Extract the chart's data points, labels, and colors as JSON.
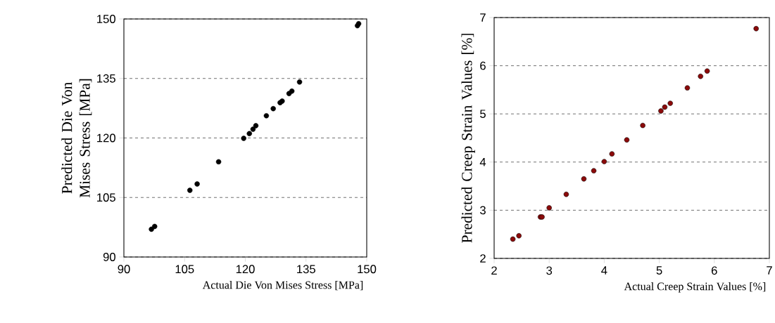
{
  "chart_data": [
    {
      "type": "scatter",
      "xlabel": "Actual Die Von Mises Stress [MPa]",
      "ylabel": "Predicted Die Von Mises Stress [MPa]",
      "xlim": [
        90,
        150
      ],
      "ylim": [
        90,
        150
      ],
      "xticks": [
        90,
        105,
        120,
        135,
        150
      ],
      "yticks": [
        90,
        105,
        120,
        135,
        150
      ],
      "grid": "y",
      "marker": "circle",
      "color": "#000000",
      "x": [
        96.8,
        97.6,
        106.3,
        108.1,
        113.4,
        119.6,
        121.0,
        121.9,
        122.6,
        125.2,
        126.9,
        128.6,
        129.1,
        130.8,
        131.5,
        133.4,
        147.7,
        148.0
      ],
      "values": [
        97.0,
        97.7,
        106.8,
        108.4,
        114.0,
        119.9,
        121.1,
        122.2,
        123.1,
        125.6,
        127.4,
        128.9,
        129.3,
        131.2,
        131.8,
        134.1,
        148.3,
        148.8
      ]
    },
    {
      "type": "scatter",
      "xlabel": "Actual Creep Strain Values [%]",
      "ylabel": "Predicted Creep Strain Values [%]",
      "xlim": [
        2,
        7
      ],
      "ylim": [
        2,
        7
      ],
      "xticks": [
        2,
        3,
        4,
        5,
        6,
        7
      ],
      "yticks": [
        2,
        3,
        4,
        5,
        6,
        7
      ],
      "grid": "y",
      "marker": "circle",
      "color": "#8b0a0a",
      "x": [
        2.34,
        2.45,
        2.84,
        2.87,
        3.0,
        3.31,
        3.63,
        3.81,
        4.0,
        4.14,
        4.41,
        4.7,
        5.03,
        5.1,
        5.2,
        5.51,
        5.75,
        5.87,
        6.76
      ],
      "values": [
        2.4,
        2.47,
        2.86,
        2.86,
        3.05,
        3.33,
        3.65,
        3.82,
        4.01,
        4.17,
        4.46,
        4.76,
        5.06,
        5.14,
        5.22,
        5.54,
        5.78,
        5.89,
        6.77
      ]
    }
  ]
}
